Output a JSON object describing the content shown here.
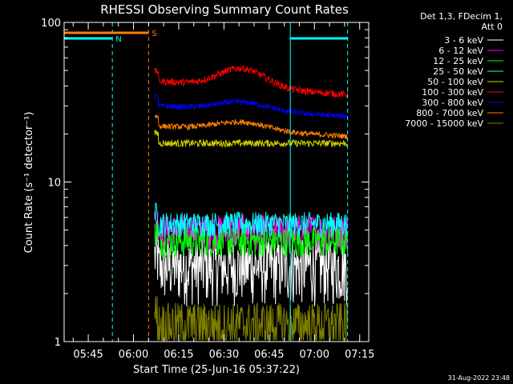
{
  "chart_data": {
    "type": "line",
    "title": "RHESSI Observing Summary Count Rates",
    "xlabel": "Start Time (25-Jun-16 05:37:22)",
    "ylabel": "Count Rate (s⁻¹ detector⁻¹)",
    "yscale": "log",
    "ylim": [
      1,
      100
    ],
    "y_ticks": [
      {
        "value": 1,
        "label": "1"
      },
      {
        "value": 10,
        "label": "10"
      },
      {
        "value": 100,
        "label": "100"
      }
    ],
    "xlim": [
      "05:37",
      "07:18"
    ],
    "x_ticks": [
      "05:45",
      "06:00",
      "06:15",
      "06:30",
      "06:45",
      "07:00",
      "07:15"
    ],
    "grid": false,
    "legend_position": "top-right",
    "legend_header": [
      "Det 1,3, FDecim 1,",
      "Att 0"
    ],
    "data_start": "06:07",
    "data_end": "07:11",
    "series": [
      {
        "name": "3 - 6 keV",
        "color": "#ffffff",
        "level": 3.0,
        "spread": 0.45,
        "trend": "flat"
      },
      {
        "name": "6 - 12 keV",
        "color": "#ff00ff",
        "level": 5.0,
        "spread": 0.25,
        "trend": "flat"
      },
      {
        "name": "12 - 25 keV",
        "color": "#00ff00",
        "level": 4.3,
        "spread": 0.22,
        "trend": "flat"
      },
      {
        "name": "25 - 50 keV",
        "color": "#00ffff",
        "level": 5.5,
        "spread": 0.18,
        "trend": "flat"
      },
      {
        "name": "50 - 100 keV",
        "color": "#d4d400",
        "level": 17.5,
        "spread": 0.05,
        "trend": "flat"
      },
      {
        "name": "100 - 300 keV",
        "color": "#ff0000",
        "level": 43,
        "spread": 0.05,
        "trend": "hump"
      },
      {
        "name": "300 - 800 keV",
        "color": "#0000ff",
        "level": 30,
        "spread": 0.04,
        "trend": "hump-small"
      },
      {
        "name": "800 - 7000 keV",
        "color": "#ff7f00",
        "level": 22.5,
        "spread": 0.04,
        "trend": "hump-small"
      },
      {
        "name": "7000 - 15000 keV",
        "color": "#808000",
        "level": 1.3,
        "spread": 0.35,
        "trend": "flat"
      }
    ],
    "annotations": [
      {
        "text": "N",
        "bar": "cyan",
        "from": "05:37",
        "to": "05:53",
        "color": "#00ffff"
      },
      {
        "text": "",
        "bar": "cyan",
        "from": "06:52",
        "to": "07:11",
        "color": "#00ffff"
      },
      {
        "text": "S",
        "bar": "orange",
        "from": "05:37",
        "to": "06:05",
        "color": "#ff7f00"
      }
    ],
    "vlines": [
      {
        "time": "05:53",
        "color": "#00ffff",
        "style": "dashed"
      },
      {
        "time": "06:05",
        "color": "#ff7f00",
        "style": "dashed"
      },
      {
        "time": "06:52",
        "color": "#00ffff",
        "style": "solid"
      },
      {
        "time": "07:11",
        "color": "#00ffff",
        "style": "dashed"
      }
    ]
  },
  "footer": {
    "timestamp": "31-Aug-2022 23:48"
  }
}
